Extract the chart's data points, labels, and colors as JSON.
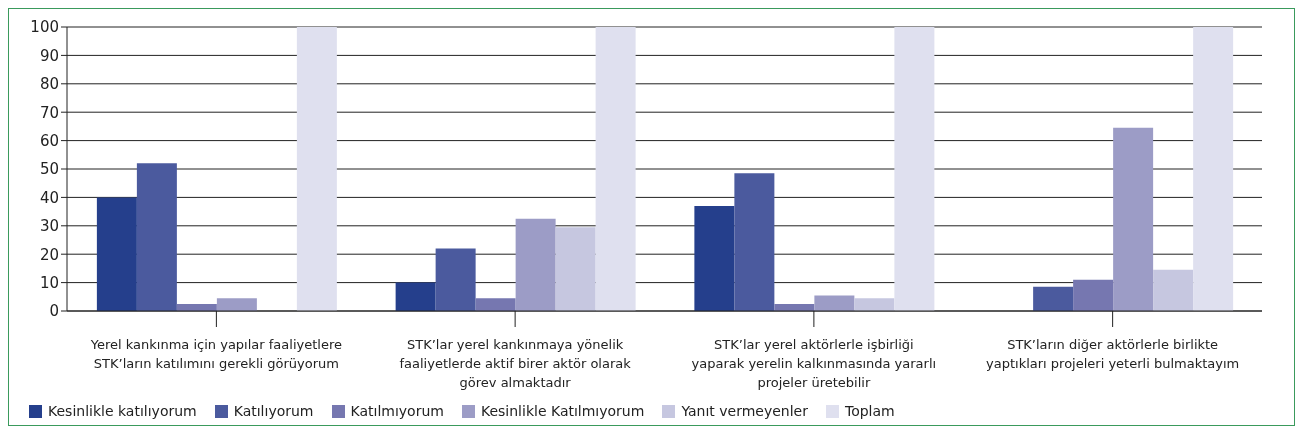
{
  "chart_data": {
    "type": "bar",
    "categories": [
      "Yerel kankınma için yapılar faaliyetlere STK’ların katılımını gerekli görüyorum",
      "STK’lar yerel kankınmaya yönelik faaliyetlerde aktif birer aktör olarak görev almaktadır",
      "STK’lar yerel aktörlerle işbirliği yaparak yerelin kalkınmasında yararlı projeler üretebilir",
      "STK’ların diğer aktörlerle birlikte yaptıkları projeleri yeterli bulmaktayım"
    ],
    "series": [
      {
        "name": "Kesinlikle katılıyorum",
        "color": "#253f8c",
        "values": [
          40,
          10,
          37,
          null
        ]
      },
      {
        "name": "Katılıyorum",
        "color": "#4b5a9e",
        "values": [
          52,
          22,
          48.5,
          8.5
        ]
      },
      {
        "name": "Katılmıyorum",
        "color": "#7677b0",
        "values": [
          2.5,
          4.5,
          2.5,
          11
        ]
      },
      {
        "name": "Kesinlikle Katılmıyorum",
        "color": "#9c9cc6",
        "values": [
          4.5,
          32.5,
          5.5,
          64.5
        ]
      },
      {
        "name": "Yanıt vermeyenler",
        "color": "#c6c7e0",
        "values": [
          null,
          29.5,
          4.5,
          14.5
        ]
      },
      {
        "name": "Toplam",
        "color": "#dfe0ef",
        "values": [
          100,
          100,
          100,
          100
        ]
      }
    ],
    "ylim": [
      0,
      100
    ],
    "yticks": [
      0,
      10,
      20,
      30,
      40,
      50,
      60,
      70,
      80,
      90,
      100
    ],
    "grid": "y",
    "legend": "bottom left"
  }
}
